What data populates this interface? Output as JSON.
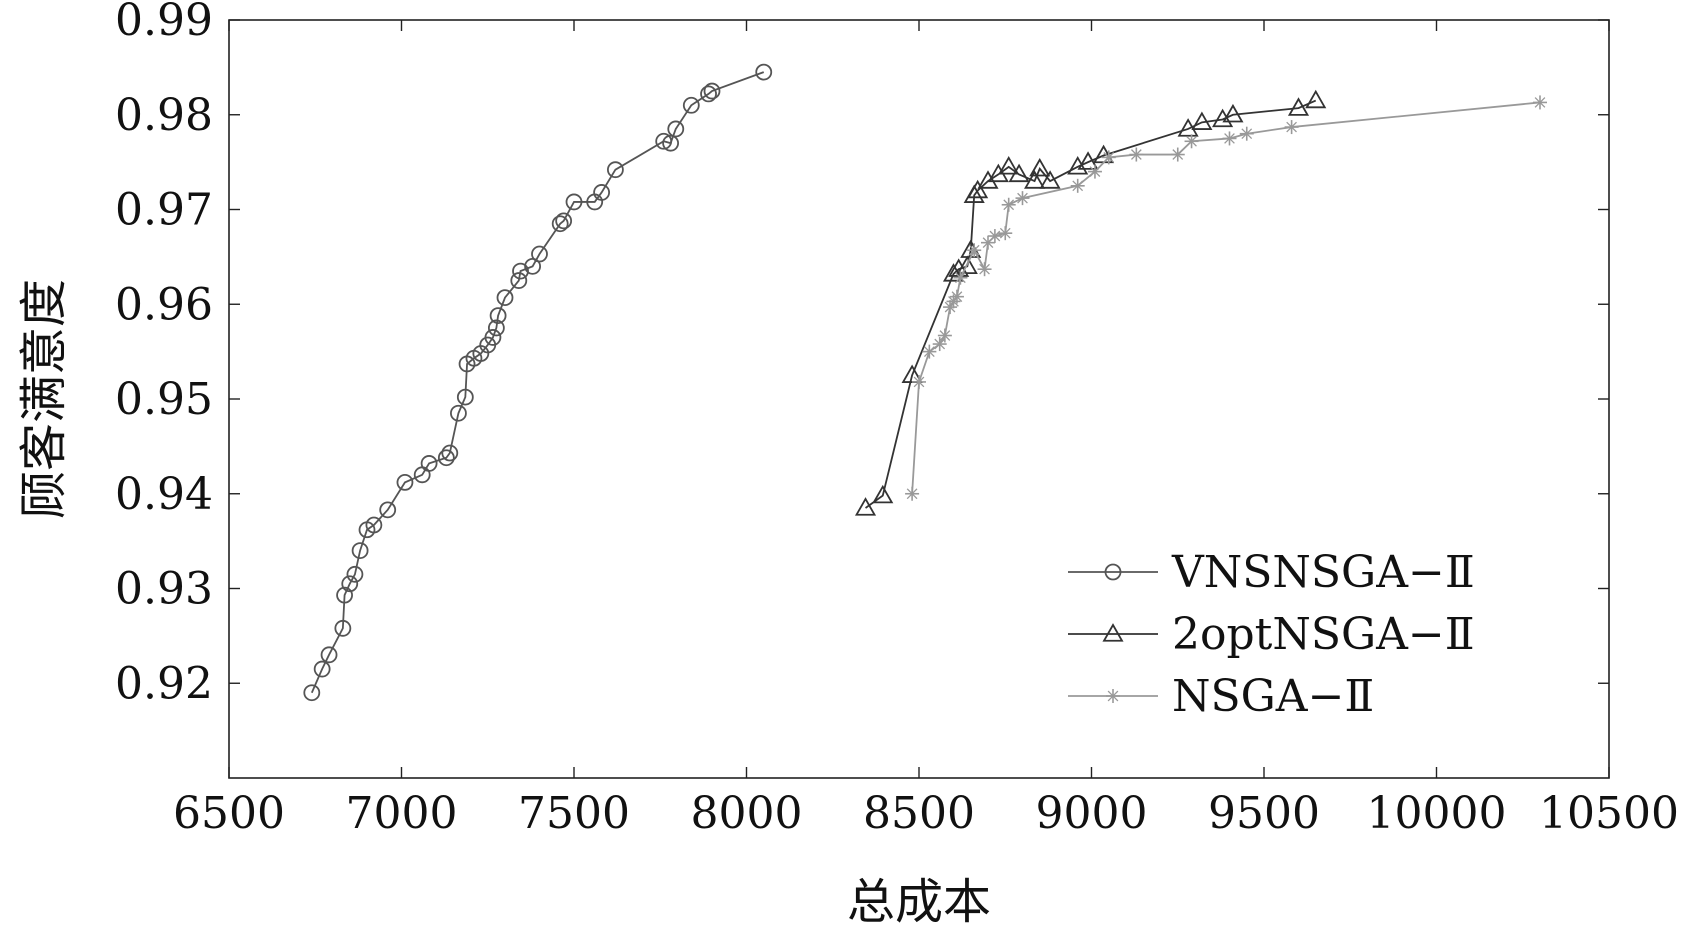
{
  "chart_data": {
    "type": "scatter",
    "title": "",
    "xlabel": "总成本",
    "ylabel": "顾客满意度",
    "xlim": [
      6500,
      10500
    ],
    "ylim": [
      0.91,
      0.99
    ],
    "xticks": [
      6500,
      7000,
      7500,
      8000,
      8500,
      9000,
      9500,
      10000,
      10500
    ],
    "yticks": [
      0.92,
      0.93,
      0.94,
      0.95,
      0.96,
      0.97,
      0.98,
      0.99
    ],
    "xtick_labels": [
      "6500",
      "7000",
      "7500",
      "8000",
      "8500",
      "9000",
      "9500",
      "10000",
      "10500"
    ],
    "ytick_labels": [
      "0.92",
      "0.93",
      "0.94",
      "0.95",
      "0.96",
      "0.97",
      "0.98",
      "0.99"
    ],
    "grid": false,
    "legend_position": "bottom-right",
    "series": [
      {
        "name": "VNSNSGA−Ⅱ",
        "marker": "circle",
        "color": "#555555",
        "x": [
          6740,
          6770,
          6790,
          6830,
          6835,
          6850,
          6865,
          6880,
          6900,
          6920,
          6960,
          7010,
          7060,
          7080,
          7130,
          7140,
          7165,
          7185,
          7190,
          7210,
          7230,
          7250,
          7265,
          7275,
          7280,
          7300,
          7340,
          7345,
          7380,
          7400,
          7460,
          7470,
          7500,
          7560,
          7580,
          7620,
          7760,
          7780,
          7795,
          7840,
          7890,
          7900,
          8050
        ],
        "y": [
          0.919,
          0.9215,
          0.923,
          0.9258,
          0.9293,
          0.9305,
          0.9315,
          0.934,
          0.9362,
          0.9367,
          0.9383,
          0.9412,
          0.942,
          0.9432,
          0.9438,
          0.9443,
          0.9485,
          0.9502,
          0.9537,
          0.9543,
          0.9548,
          0.9557,
          0.9565,
          0.9575,
          0.9588,
          0.9607,
          0.9625,
          0.9635,
          0.964,
          0.9653,
          0.9685,
          0.9688,
          0.9708,
          0.9708,
          0.9718,
          0.9742,
          0.9772,
          0.977,
          0.9785,
          0.981,
          0.9822,
          0.9825,
          0.9845
        ]
      },
      {
        "name": "2optNSGA−Ⅱ",
        "marker": "triangle",
        "color": "#333333",
        "x": [
          8345,
          8395,
          8480,
          8600,
          8615,
          8640,
          8650,
          8660,
          8670,
          8700,
          8730,
          8760,
          8790,
          8835,
          8850,
          8880,
          8960,
          8990,
          9035,
          9280,
          9320,
          9380,
          9410,
          9600,
          9650
        ],
        "y": [
          0.9385,
          0.9398,
          0.9525,
          0.9632,
          0.9637,
          0.964,
          0.9657,
          0.9715,
          0.972,
          0.973,
          0.9737,
          0.9745,
          0.9737,
          0.973,
          0.9743,
          0.973,
          0.9745,
          0.975,
          0.9757,
          0.9785,
          0.9792,
          0.9795,
          0.98,
          0.9807,
          0.9815
        ]
      },
      {
        "name": "NSGA−Ⅱ",
        "marker": "star",
        "color": "#999999",
        "x": [
          8480,
          8500,
          8530,
          8560,
          8575,
          8590,
          8600,
          8610,
          8620,
          8660,
          8690,
          8700,
          8720,
          8750,
          8760,
          8800,
          8960,
          9010,
          9050,
          9130,
          9250,
          9290,
          9400,
          9450,
          9580,
          10300
        ],
        "y": [
          0.94,
          0.9518,
          0.955,
          0.9558,
          0.9567,
          0.9597,
          0.9603,
          0.9608,
          0.9628,
          0.9657,
          0.9637,
          0.9665,
          0.9672,
          0.9675,
          0.9705,
          0.9712,
          0.9725,
          0.974,
          0.9755,
          0.9758,
          0.9758,
          0.9772,
          0.9775,
          0.978,
          0.9787,
          0.9813
        ]
      }
    ]
  }
}
